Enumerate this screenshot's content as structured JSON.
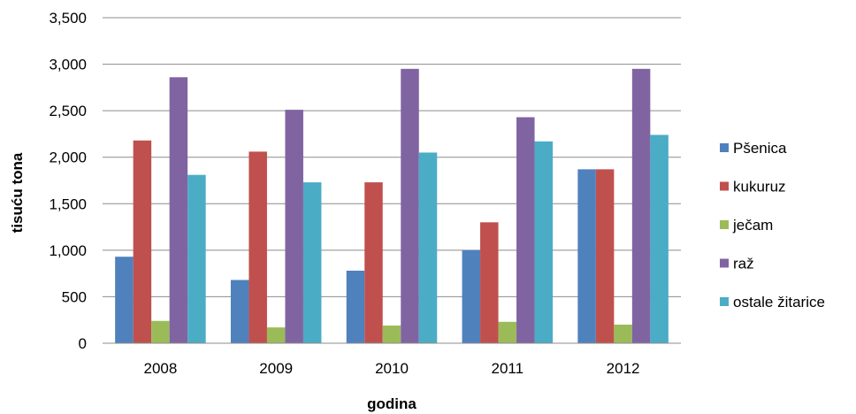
{
  "chart_data": {
    "type": "bar",
    "xlabel": "godina",
    "ylabel": "tisuću tona",
    "categories": [
      "2008",
      "2009",
      "2010",
      "2011",
      "2012"
    ],
    "ylim": [
      0,
      3500
    ],
    "yticks": [
      0,
      500,
      1000,
      1500,
      2000,
      2500,
      3000,
      3500
    ],
    "ytick_labels": [
      "0",
      "500",
      "1,000",
      "1,500",
      "2,000",
      "2,500",
      "3,000",
      "3,500"
    ],
    "grid": "horizontal",
    "legend_position": "right",
    "series": [
      {
        "name": "Pšenica",
        "color": "#4F81BD",
        "values": [
          930,
          680,
          780,
          1000,
          1870
        ]
      },
      {
        "name": "kukuruz",
        "color": "#C0504D",
        "values": [
          2180,
          2060,
          1730,
          1300,
          1870
        ]
      },
      {
        "name": "ječam",
        "color": "#9BBB59",
        "values": [
          240,
          170,
          190,
          230,
          200
        ]
      },
      {
        "name": "raž",
        "color": "#8064A2",
        "values": [
          2860,
          2510,
          2950,
          2430,
          2950
        ]
      },
      {
        "name": "ostale žitarice",
        "color": "#4BACC6",
        "values": [
          1810,
          1730,
          2050,
          2170,
          2240
        ]
      }
    ]
  }
}
